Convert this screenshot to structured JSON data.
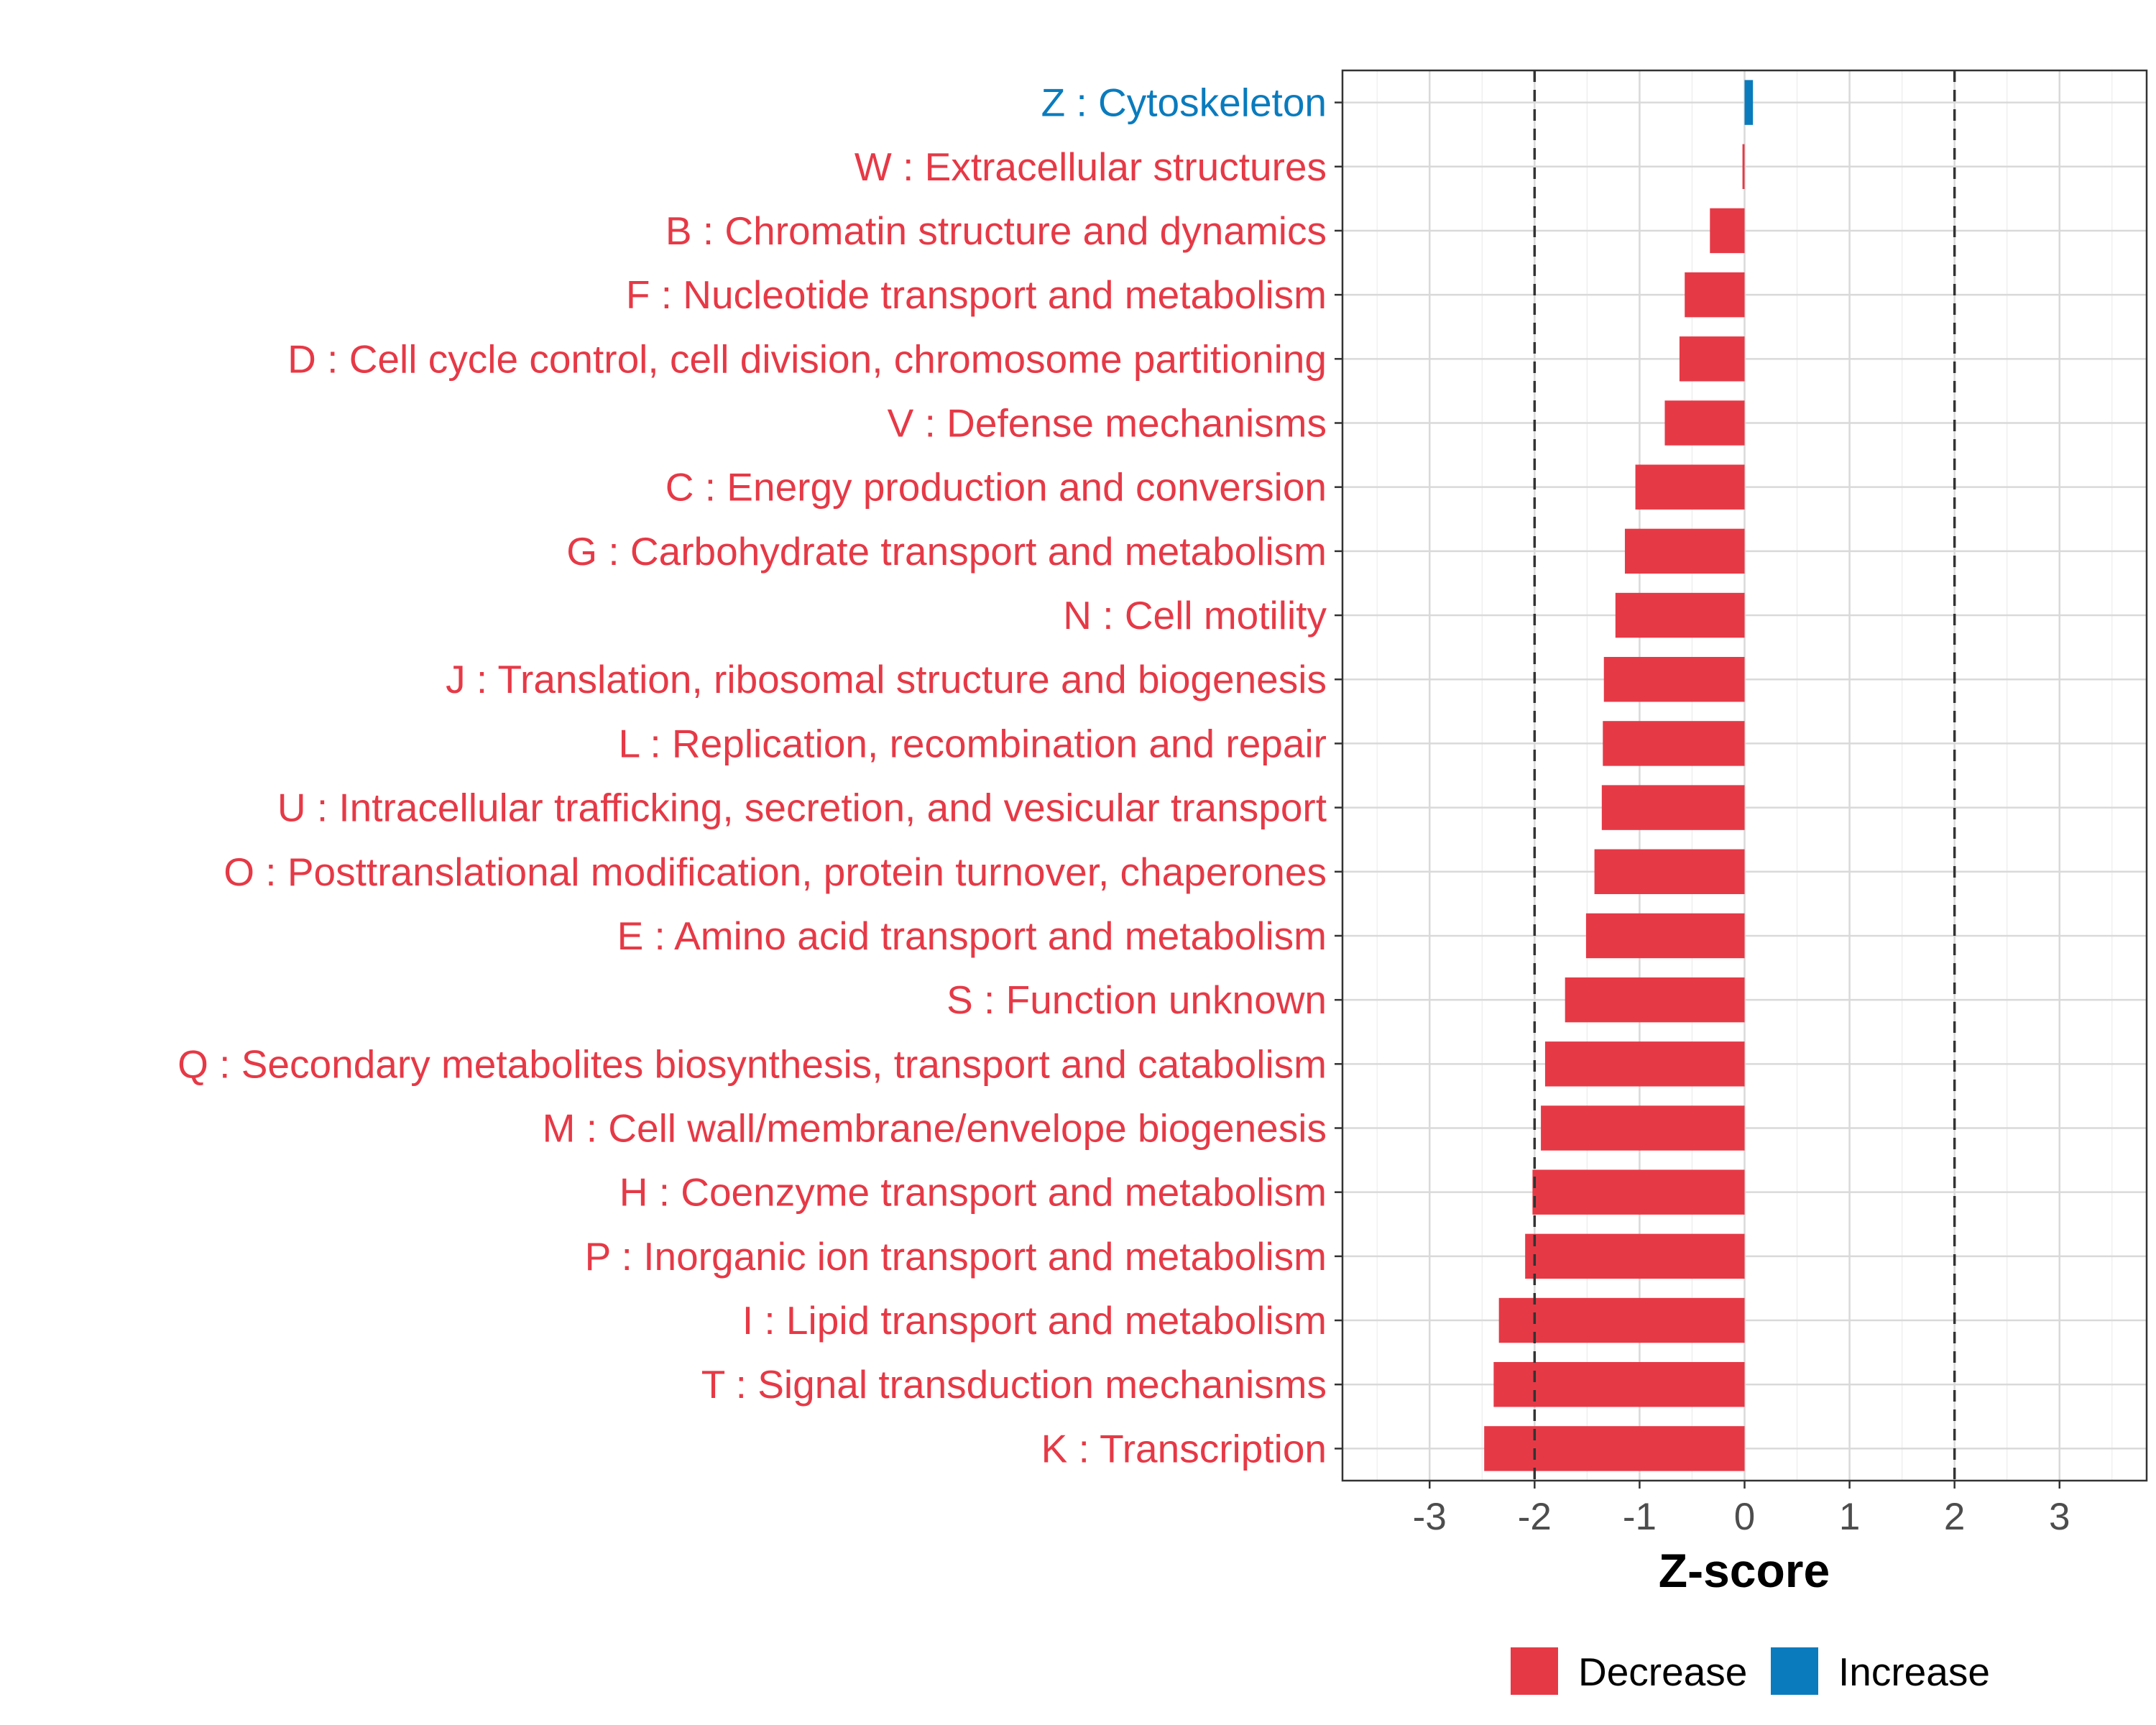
{
  "chart_data": {
    "type": "bar",
    "orientation": "horizontal",
    "categories": [
      "Z : Cytoskeleton",
      "W : Extracellular structures",
      "B : Chromatin structure and dynamics",
      "F : Nucleotide transport and metabolism",
      "D : Cell cycle control, cell division, chromosome partitioning",
      "V : Defense mechanisms",
      "C : Energy production and conversion",
      "G : Carbohydrate transport and metabolism",
      "N : Cell motility",
      "J : Translation, ribosomal structure and biogenesis",
      "L : Replication, recombination and repair",
      "U : Intracellular trafficking, secretion, and vesicular transport",
      "O : Posttranslational modification, protein turnover, chaperones",
      "E : Amino acid transport and metabolism",
      "S : Function unknown",
      "Q : Secondary metabolites biosynthesis, transport and catabolism",
      "M : Cell wall/membrane/envelope biogenesis",
      "H : Coenzyme transport and metabolism",
      "P : Inorganic ion transport and metabolism",
      "I : Lipid transport and metabolism",
      "T : Signal transduction mechanisms",
      "K : Transcription"
    ],
    "values": [
      0.08,
      -0.02,
      -0.33,
      -0.57,
      -0.62,
      -0.76,
      -1.04,
      -1.14,
      -1.23,
      -1.34,
      -1.35,
      -1.36,
      -1.43,
      -1.51,
      -1.71,
      -1.9,
      -1.94,
      -2.02,
      -2.09,
      -2.34,
      -2.39,
      -2.48
    ],
    "direction": [
      "Increase",
      "Decrease",
      "Decrease",
      "Decrease",
      "Decrease",
      "Decrease",
      "Decrease",
      "Decrease",
      "Decrease",
      "Decrease",
      "Decrease",
      "Decrease",
      "Decrease",
      "Decrease",
      "Decrease",
      "Decrease",
      "Decrease",
      "Decrease",
      "Decrease",
      "Decrease",
      "Decrease",
      "Decrease"
    ],
    "xlabel": "Z-score",
    "xticks": [
      -3,
      -2,
      -1,
      0,
      1,
      2,
      3
    ],
    "xlim": [
      -3.83,
      3.83
    ],
    "reference_lines": [
      -2,
      2
    ],
    "grid": true,
    "legend": {
      "position": "bottom",
      "entries": [
        {
          "label": "Decrease",
          "color": "#e63946"
        },
        {
          "label": "Increase",
          "color": "#0a7bbd"
        }
      ]
    },
    "colors": {
      "Decrease": "#e63946",
      "Increase": "#0a7bbd"
    }
  }
}
